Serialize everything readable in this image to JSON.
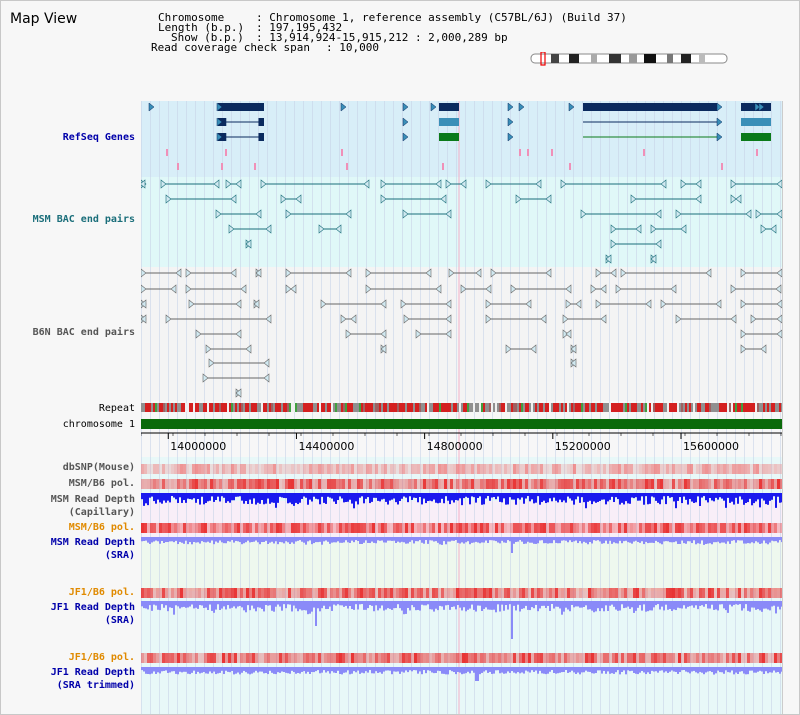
{
  "app": {
    "title": "Map View"
  },
  "info": {
    "chromosome_key": "Chromosome",
    "chromosome_val": ": Chromosome 1, reference assembly (C57BL/6J) (Build 37)",
    "length_key": "Length (b.p.)",
    "length_val": ": 197,195,432",
    "show_key": "Show (b.p.)",
    "show_val": ": 13,914,924-15,915,212 : 2,000,289 bp",
    "coverage_key": "Read coverage check span",
    "coverage_val": ": 10,000"
  },
  "tracks": {
    "refseq": "RefSeq Genes",
    "msm_bac": "MSM BAC end pairs",
    "b6n_bac": "B6N BAC end pairs",
    "repeat": "Repeat",
    "chromosome": "chromosome 1",
    "dbsnp": "dbSNP(Mouse)",
    "msm_b6_pol_1": "MSM/B6 pol.",
    "msm_read_depth_cap_1": "MSM Read Depth",
    "msm_read_depth_cap_2": "(Capillary)",
    "msm_b6_pol_2": "MSM/B6 pol.",
    "msm_read_depth_sra_1": "MSM Read Depth",
    "msm_read_depth_sra_2": "(SRA)",
    "jf1_b6_pol_1": "JF1/B6 pol.",
    "jf1_read_depth_sra_1": "JF1 Read Depth",
    "jf1_read_depth_sra_2": "(SRA)",
    "jf1_b6_pol_2": "JF1/B6 pol.",
    "jf1_read_depth_trim_1": "JF1 Read Depth",
    "jf1_read_depth_trim_2": "(SRA trimmed)"
  },
  "axis": {
    "ticks": [
      {
        "pos": 14000000,
        "label": "14000000"
      },
      {
        "pos": 14400000,
        "label": "14400000"
      },
      {
        "pos": 14800000,
        "label": "14800000"
      },
      {
        "pos": 15200000,
        "label": "15200000"
      },
      {
        "pos": 15600000,
        "label": "15600000"
      }
    ]
  },
  "colors": {
    "refseq_bg": "#d8eef8",
    "msm_bg": "#e0f8f8",
    "b6n_bg": "#f4f4f4",
    "gene_dark": "#0a2a5e",
    "gene_mid": "#3a8fb8",
    "gene_green": "#0a7a1a",
    "msm_line": "#1a6e7a",
    "b6n_line": "#666666",
    "chrom_green": "#0a6a0a",
    "depth_blue": "#1a1aee",
    "depth_lightblue": "#8a8af8",
    "pol_red": "#e83a3a"
  }
}
